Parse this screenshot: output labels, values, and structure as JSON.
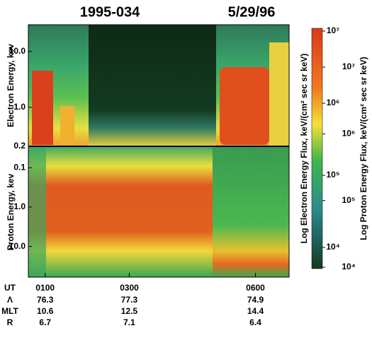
{
  "chart_data": [
    {
      "type": "spectrogram",
      "title": "1995-034",
      "subtitle": "5/29/96",
      "y_label": "Electron Energy, kev",
      "log_scale": true,
      "ylim": [
        0.2,
        30
      ],
      "yticks": [
        {
          "value": 10,
          "label": "10.0"
        },
        {
          "value": 1,
          "label": "1.0"
        },
        {
          "value": 0.2,
          "label": "0.2"
        }
      ],
      "colorbar": {
        "label": "Log Electron Energy Flux, keV/(cm² sec sr keV)",
        "lim": [
          10000,
          10000000
        ],
        "ticks": [
          {
            "value": 10000000,
            "label": "10⁷"
          },
          {
            "value": 1000000,
            "label": "10⁶"
          },
          {
            "value": 100000,
            "label": "10⁵"
          },
          {
            "value": 10000,
            "label": "10⁴"
          }
        ]
      }
    },
    {
      "type": "spectrogram",
      "y_label": "Proton Energy, kev",
      "log_scale": true,
      "ylim": [
        0.03,
        60
      ],
      "yticks": [
        {
          "value": 0.1,
          "label": "0.1"
        },
        {
          "value": 1,
          "label": "1.0"
        },
        {
          "value": 10,
          "label": "10.0"
        }
      ],
      "x_label": "UT",
      "xlim": [
        0.6,
        6.8
      ],
      "xticks": [
        {
          "value": 1,
          "label": "0100"
        },
        {
          "value": 3,
          "label": "0300"
        },
        {
          "value": 6,
          "label": "0600"
        }
      ],
      "colorbar": {
        "label": "Log Proton Energy Flux, keV/(cm² sec sr keV)",
        "lim": [
          10000,
          10000000
        ],
        "ticks": [
          {
            "value": 10000000,
            "label": "10⁷"
          },
          {
            "value": 1000000,
            "label": "10⁶"
          },
          {
            "value": 100000,
            "label": "10⁵"
          },
          {
            "value": 10000,
            "label": "10⁴"
          }
        ]
      }
    }
  ],
  "ephemeris": [
    {
      "label": "Λ",
      "values": [
        76.3,
        77.3,
        74.9
      ]
    },
    {
      "label": "MLT",
      "values": [
        10.6,
        12.5,
        14.4
      ]
    },
    {
      "label": "R",
      "values": [
        6.7,
        7.1,
        6.4
      ]
    }
  ]
}
